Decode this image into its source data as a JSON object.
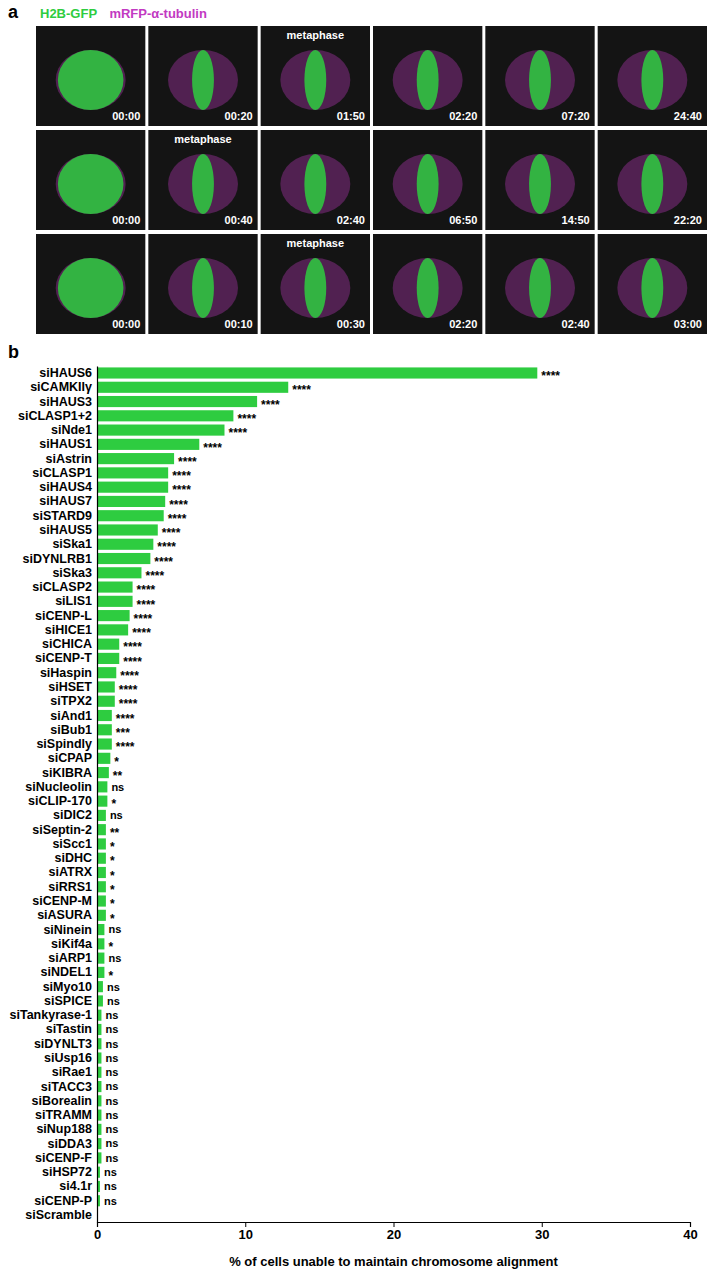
{
  "image_panel": {
    "panel_label": "a",
    "channels": [
      {
        "name": "H2B-GFP",
        "color": "#2ecc40"
      },
      {
        "name": "mRFP-α-tubulin",
        "color": "#c23ac2"
      }
    ],
    "rows": [
      {
        "frames": [
          {
            "time": "00:00"
          },
          {
            "time": "00:20"
          },
          {
            "time": "01:50",
            "label": "metaphase"
          },
          {
            "time": "02:20"
          },
          {
            "time": "07:20"
          },
          {
            "time": "24:40"
          }
        ]
      },
      {
        "frames": [
          {
            "time": "00:00"
          },
          {
            "time": "00:40",
            "label": "metaphase"
          },
          {
            "time": "02:40"
          },
          {
            "time": "06:50"
          },
          {
            "time": "14:50"
          },
          {
            "time": "22:20"
          }
        ]
      },
      {
        "frames": [
          {
            "time": "00:00"
          },
          {
            "time": "00:10"
          },
          {
            "time": "00:30",
            "label": "metaphase"
          },
          {
            "time": "02:20"
          },
          {
            "time": "02:40"
          },
          {
            "time": "03:00"
          }
        ]
      }
    ]
  },
  "chart_data": {
    "type": "bar",
    "orientation": "horizontal",
    "panel_label": "b",
    "x_label": "% of cells unable to maintain chromosome alignment",
    "categories": [
      "siHAUS6",
      "siCAMKIIγ",
      "siHAUS3",
      "siCLASP1+2",
      "siNde1",
      "siHAUS1",
      "siAstrin",
      "siCLASP1",
      "siHAUS4",
      "siHAUS7",
      "siSTARD9",
      "siHAUS5",
      "siSka1",
      "siDYNLRB1",
      "siSka3",
      "siCLASP2",
      "siLIS1",
      "siCENP-L",
      "siHICE1",
      "siCHICA",
      "siCENP-T",
      "siHaspin",
      "siHSET",
      "siTPX2",
      "siAnd1",
      "siBub1",
      "siSpindly",
      "siCPAP",
      "siKIBRA",
      "siNucleolin",
      "siCLIP-170",
      "siDIC2",
      "siSeptin-2",
      "siScc1",
      "siDHC",
      "siATRX",
      "siRRS1",
      "siCENP-M",
      "siASURA",
      "siNinein",
      "siKif4a",
      "siARP1",
      "siNDEL1",
      "siMyo10",
      "siSPICE",
      "siTankyrase-1",
      "siTastin",
      "siDYNLT3",
      "siUsp16",
      "siRae1",
      "siTACC3",
      "siBorealin",
      "siTRAMM",
      "siNup188",
      "siDDA3",
      "siCENP-F",
      "siHSP72",
      "si4.1r",
      "siCENP-P",
      "siScramble"
    ],
    "values": [
      29.7,
      12.9,
      10.8,
      9.2,
      8.6,
      6.9,
      5.2,
      4.8,
      4.8,
      4.6,
      4.5,
      4.1,
      3.8,
      3.6,
      3.0,
      2.4,
      2.4,
      2.2,
      2.1,
      1.5,
      1.5,
      1.3,
      1.2,
      1.2,
      1.0,
      1.0,
      1.0,
      0.9,
      0.8,
      0.7,
      0.7,
      0.6,
      0.6,
      0.6,
      0.6,
      0.6,
      0.6,
      0.6,
      0.6,
      0.5,
      0.5,
      0.5,
      0.5,
      0.4,
      0.4,
      0.3,
      0.3,
      0.3,
      0.3,
      0.3,
      0.3,
      0.3,
      0.3,
      0.3,
      0.3,
      0.3,
      0.2,
      0.2,
      0.2,
      0
    ],
    "significance": [
      "****",
      "****",
      "****",
      "****",
      "****",
      "****",
      "****",
      "****",
      "****",
      "****",
      "****",
      "****",
      "****",
      "****",
      "****",
      "****",
      "****",
      "****",
      "****",
      "****",
      "****",
      "****",
      "****",
      "****",
      "****",
      "***",
      "****",
      "*",
      "**",
      "ns",
      "*",
      "ns",
      "**",
      "*",
      "*",
      "*",
      "*",
      "*",
      "*",
      "ns",
      "*",
      "ns",
      "*",
      "ns",
      "ns",
      "ns",
      "ns",
      "ns",
      "ns",
      "ns",
      "ns",
      "ns",
      "ns",
      "ns",
      "ns",
      "ns",
      "ns",
      "ns",
      "ns",
      null
    ],
    "color": "#2ecc40",
    "xlim": [
      0,
      40
    ],
    "xticks": [
      0,
      10,
      20,
      30,
      40
    ],
    "grid": false
  }
}
